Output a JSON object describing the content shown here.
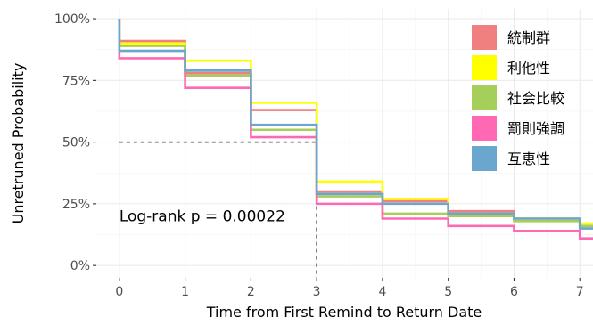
{
  "chart_data": {
    "type": "line",
    "subtype": "step (Kaplan-Meier survival curves)",
    "title": "",
    "xlabel": "Time from First Remind to Return Date",
    "ylabel": "Unretruned Probability",
    "xlim": [
      -0.35,
      7.2
    ],
    "ylim": [
      -0.05,
      1.04
    ],
    "x_ticks": [
      0,
      1,
      2,
      3,
      4,
      5,
      6,
      7
    ],
    "y_ticks": [
      0,
      0.25,
      0.5,
      0.75,
      1.0
    ],
    "y_tick_labels": [
      "0%",
      "25%",
      "50%",
      "75%",
      "100%"
    ],
    "grid": true,
    "legend": "top-right",
    "annotation": {
      "text": "Log-rank  p = 0.00022",
      "x": 0,
      "y": 0.2
    },
    "median_line": {
      "y": 0.5,
      "x": 3
    },
    "x": [
      0,
      1,
      2,
      3,
      4,
      5,
      6,
      7
    ],
    "series": [
      {
        "name": "統制群",
        "color": "#F08080",
        "values": [
          0.91,
          0.78,
          0.63,
          0.3,
          0.26,
          0.22,
          0.19,
          0.16
        ]
      },
      {
        "name": "利他性",
        "color": "#FFFF00",
        "values": [
          0.9,
          0.83,
          0.66,
          0.34,
          0.27,
          0.21,
          0.19,
          0.17
        ]
      },
      {
        "name": "社会比較",
        "color": "#A6CE5A",
        "values": [
          0.89,
          0.77,
          0.55,
          0.28,
          0.21,
          0.2,
          0.18,
          0.16
        ]
      },
      {
        "name": "罰則強調",
        "color": "#FF69B4",
        "values": [
          0.84,
          0.72,
          0.52,
          0.25,
          0.19,
          0.16,
          0.14,
          0.11
        ]
      },
      {
        "name": "互恵性",
        "color": "#6BA6CE",
        "values": [
          0.87,
          0.79,
          0.57,
          0.29,
          0.25,
          0.21,
          0.19,
          0.15
        ]
      }
    ]
  }
}
